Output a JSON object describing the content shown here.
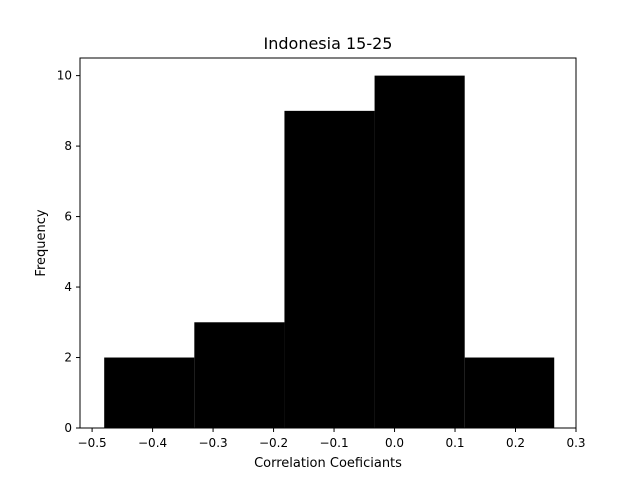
{
  "chart_data": {
    "type": "bar",
    "title": "Indonesia 15-25",
    "xlabel": "Correlation Coeficiants",
    "ylabel": "Frequency",
    "xlim": [
      -0.52,
      0.3
    ],
    "ylim": [
      0,
      10.5
    ],
    "bar_color": "#000000",
    "x_ticks": [
      {
        "value": -0.5,
        "label": "−0.5"
      },
      {
        "value": -0.4,
        "label": "−0.4"
      },
      {
        "value": -0.3,
        "label": "−0.3"
      },
      {
        "value": -0.2,
        "label": "−0.2"
      },
      {
        "value": -0.1,
        "label": "−0.1"
      },
      {
        "value": 0.0,
        "label": "0.0"
      },
      {
        "value": 0.1,
        "label": "0.1"
      },
      {
        "value": 0.2,
        "label": "0.2"
      },
      {
        "value": 0.3,
        "label": "0.3"
      }
    ],
    "y_ticks": [
      {
        "value": 0,
        "label": "0"
      },
      {
        "value": 2,
        "label": "2"
      },
      {
        "value": 4,
        "label": "4"
      },
      {
        "value": 6,
        "label": "6"
      },
      {
        "value": 8,
        "label": "8"
      },
      {
        "value": 10,
        "label": "10"
      }
    ],
    "bins": [
      {
        "x0": -0.48,
        "x1": -0.331,
        "count": 2
      },
      {
        "x0": -0.331,
        "x1": -0.182,
        "count": 3
      },
      {
        "x0": -0.182,
        "x1": -0.033,
        "count": 9
      },
      {
        "x0": -0.033,
        "x1": 0.116,
        "count": 10
      },
      {
        "x0": 0.116,
        "x1": 0.264,
        "count": 2
      }
    ]
  }
}
